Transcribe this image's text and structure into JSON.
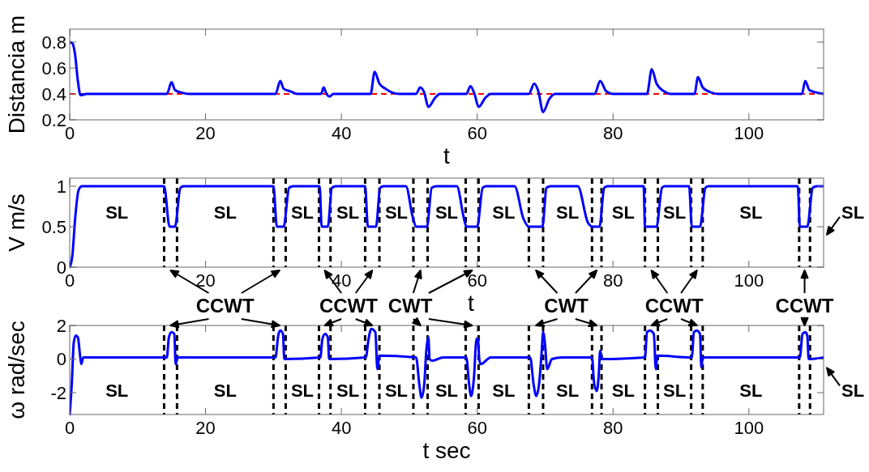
{
  "chart_data": [
    {
      "type": "line",
      "xlabel": "t",
      "ylabel": "Distancia m",
      "color": "#0000ff",
      "xlim": [
        0,
        111
      ],
      "xticks": [
        0,
        20,
        40,
        60,
        80,
        100
      ],
      "ylim": [
        0.2,
        0.9
      ],
      "yticks": [
        0.2,
        0.4,
        0.6,
        0.8
      ],
      "x": [
        0,
        0.4,
        0.8,
        1.2,
        1.6,
        2.5,
        14.3,
        15.0,
        15.5,
        16.5,
        17.5,
        30.3,
        31.0,
        31.5,
        32.5,
        33.5,
        37.0,
        37.4,
        37.8,
        38.3,
        38.8,
        44.3,
        44.9,
        45.6,
        46.5,
        47.5,
        48.5,
        51.0,
        51.6,
        52.2,
        52.8,
        53.8,
        54.5,
        58.4,
        59.0,
        59.6,
        60.2,
        61.2,
        62.0,
        67.6,
        68.4,
        69.0,
        69.7,
        70.6,
        71.5,
        77.3,
        78.1,
        79.0,
        80,
        85.0,
        85.7,
        86.4,
        87.5,
        88.5,
        92.0,
        92.5,
        93.2,
        94.5,
        95.5,
        107.8,
        108.3,
        108.9,
        110,
        111
      ],
      "values": [
        0.8,
        0.79,
        0.7,
        0.5,
        0.39,
        0.4,
        0.4,
        0.49,
        0.43,
        0.41,
        0.4,
        0.4,
        0.5,
        0.44,
        0.42,
        0.4,
        0.4,
        0.45,
        0.4,
        0.38,
        0.4,
        0.4,
        0.57,
        0.48,
        0.44,
        0.41,
        0.4,
        0.4,
        0.45,
        0.41,
        0.3,
        0.37,
        0.4,
        0.4,
        0.46,
        0.4,
        0.3,
        0.37,
        0.4,
        0.4,
        0.48,
        0.42,
        0.26,
        0.36,
        0.4,
        0.4,
        0.5,
        0.42,
        0.4,
        0.4,
        0.59,
        0.48,
        0.42,
        0.4,
        0.4,
        0.53,
        0.45,
        0.41,
        0.4,
        0.4,
        0.5,
        0.43,
        0.41,
        0.4
      ],
      "ref_lines": [
        {
          "axis": "y",
          "value": 0.4,
          "color": "#ff0000",
          "line_style": "dashed"
        }
      ]
    },
    {
      "type": "line",
      "xlabel": "t",
      "ylabel": "V m/s",
      "color": "#0000ff",
      "xlim": [
        0,
        111
      ],
      "xticks": [
        0,
        20,
        40,
        60,
        80,
        100
      ],
      "ylim": [
        0,
        1.1
      ],
      "yticks": [
        0,
        0.5,
        1
      ],
      "x": [
        0,
        0.4,
        0.8,
        1.3,
        1.8,
        13.9,
        14.7,
        15.5,
        16.3,
        16.8,
        30.0,
        30.5,
        31.5,
        32.3,
        32.9,
        36.8,
        37.1,
        38.0,
        38.6,
        39.2,
        43.5,
        43.9,
        45.1,
        45.7,
        46.2,
        49.5,
        50.5,
        51.0,
        52.6,
        53.3,
        54,
        57,
        58.0,
        58.4,
        60.0,
        60.8,
        61.3,
        65.5,
        66.8,
        67.6,
        69.6,
        70.2,
        70.8,
        74.8,
        76.3,
        77.0,
        78.0,
        78.7,
        79.2,
        84.5,
        84.7,
        86.4,
        87.2,
        87.6,
        91.2,
        91.6,
        92.8,
        93.6,
        94,
        107.2,
        107.5,
        108.6,
        109.4,
        110,
        111
      ],
      "values": [
        0,
        0.15,
        0.6,
        0.95,
        1,
        1,
        0.5,
        0.5,
        0.98,
        1,
        1,
        0.5,
        0.5,
        0.98,
        1,
        1,
        0.5,
        0.5,
        0.98,
        1,
        1,
        0.5,
        0.5,
        0.98,
        1,
        1,
        0.62,
        0.5,
        0.5,
        0.98,
        1,
        1,
        0.62,
        0.5,
        0.5,
        0.98,
        1,
        1,
        0.6,
        0.5,
        0.5,
        0.98,
        1,
        1,
        0.55,
        0.5,
        0.5,
        0.98,
        1,
        1,
        0.5,
        0.5,
        0.98,
        1,
        1,
        0.5,
        0.5,
        0.98,
        1,
        1,
        0.5,
        0.5,
        0.98,
        1,
        1
      ],
      "ref_lines": [
        {
          "axis": "x",
          "value": 13.9,
          "color": "#000000",
          "line_style": "dashed"
        },
        {
          "axis": "x",
          "value": 15.8,
          "color": "#000000",
          "line_style": "dashed"
        },
        {
          "axis": "x",
          "value": 30.0,
          "color": "#000000",
          "line_style": "dashed"
        },
        {
          "axis": "x",
          "value": 31.8,
          "color": "#000000",
          "line_style": "dashed"
        },
        {
          "axis": "x",
          "value": 36.7,
          "color": "#000000",
          "line_style": "dashed"
        },
        {
          "axis": "x",
          "value": 38.4,
          "color": "#000000",
          "line_style": "dashed"
        },
        {
          "axis": "x",
          "value": 43.5,
          "color": "#000000",
          "line_style": "dashed"
        },
        {
          "axis": "x",
          "value": 45.6,
          "color": "#000000",
          "line_style": "dashed"
        },
        {
          "axis": "x",
          "value": 50.6,
          "color": "#000000",
          "line_style": "dashed"
        },
        {
          "axis": "x",
          "value": 52.7,
          "color": "#000000",
          "line_style": "dashed"
        },
        {
          "axis": "x",
          "value": 58.3,
          "color": "#000000",
          "line_style": "dashed"
        },
        {
          "axis": "x",
          "value": 60.2,
          "color": "#000000",
          "line_style": "dashed"
        },
        {
          "axis": "x",
          "value": 67.6,
          "color": "#000000",
          "line_style": "dashed"
        },
        {
          "axis": "x",
          "value": 69.7,
          "color": "#000000",
          "line_style": "dashed"
        },
        {
          "axis": "x",
          "value": 76.9,
          "color": "#000000",
          "line_style": "dashed"
        },
        {
          "axis": "x",
          "value": 78.3,
          "color": "#000000",
          "line_style": "dashed"
        },
        {
          "axis": "x",
          "value": 84.7,
          "color": "#000000",
          "line_style": "dashed"
        },
        {
          "axis": "x",
          "value": 86.6,
          "color": "#000000",
          "line_style": "dashed"
        },
        {
          "axis": "x",
          "value": 91.5,
          "color": "#000000",
          "line_style": "dashed"
        },
        {
          "axis": "x",
          "value": 93.2,
          "color": "#000000",
          "line_style": "dashed"
        },
        {
          "axis": "x",
          "value": 107.4,
          "color": "#000000",
          "line_style": "dashed"
        },
        {
          "axis": "x",
          "value": 109.0,
          "color": "#000000",
          "line_style": "dashed"
        }
      ],
      "annotations": [
        "SL",
        "SL",
        "SL",
        "SL",
        "SL",
        "SL",
        "SL",
        "SL",
        "SL",
        "SL",
        "SL",
        "SL",
        "CCWT",
        "CCWT",
        "CWT",
        "CWT",
        "CCWT",
        "CCWT"
      ]
    },
    {
      "type": "line",
      "xlabel": "t sec",
      "ylabel": "ω rad/sec",
      "color": "#0000ff",
      "xlim": [
        0,
        111
      ],
      "xticks": [
        0,
        20,
        40,
        60,
        80,
        100
      ],
      "ylim": [
        -3.3,
        2
      ],
      "yticks": [
        -2,
        0,
        2
      ],
      "x": [
        0,
        0.3,
        0.6,
        0.9,
        1.2,
        1.5,
        1.7,
        2,
        14.3,
        14.6,
        15.0,
        15.4,
        15.6,
        15.9,
        30.3,
        30.7,
        31.0,
        31.4,
        31.6,
        36.9,
        37.2,
        37.6,
        38.0,
        38.2,
        43.6,
        44.0,
        44.4,
        45.0,
        45.3,
        45.6,
        51.0,
        51.5,
        51.8,
        52.2,
        52.5,
        52.8,
        53.0,
        53.3,
        55,
        58.4,
        58.8,
        59.1,
        59.5,
        59.9,
        60.1,
        60.3,
        60.5,
        62,
        67.8,
        68.3,
        68.7,
        69.1,
        69.5,
        69.7,
        70.0,
        70.3,
        71,
        72.5,
        76.9,
        77.2,
        77.6,
        77.9,
        78.1,
        78.4,
        84.7,
        85.0,
        85.4,
        86.0,
        86.3,
        86.5,
        91.6,
        91.9,
        92.3,
        92.8,
        93.0,
        93.2,
        107.5,
        107.9,
        108.3,
        108.6,
        108.8,
        111
      ],
      "values": [
        -3.3,
        -1.5,
        1.0,
        1.4,
        1.3,
        0.3,
        -0.3,
        0.1,
        0.1,
        1.3,
        1.6,
        1.5,
        -0.3,
        0.1,
        0.1,
        1.4,
        1.7,
        1.5,
        0,
        0.1,
        1.2,
        1.5,
        1.3,
        0,
        0.1,
        1.2,
        1.8,
        1.6,
        -0.6,
        0.2,
        0.1,
        -1.6,
        -2.3,
        -1.5,
        0.5,
        1.3,
        0,
        -0.1,
        0.1,
        0.1,
        -1.5,
        -2.2,
        -1.2,
        1.2,
        1.2,
        0,
        -0.3,
        0.1,
        0.1,
        -1.5,
        -2.2,
        -1.5,
        0.5,
        1.6,
        0.8,
        -0.6,
        0,
        0.1,
        0.1,
        -1.4,
        -1.9,
        -0.9,
        0.5,
        0,
        0.1,
        1.6,
        1.7,
        1.5,
        -0.6,
        0.2,
        0.1,
        1.6,
        1.7,
        1.5,
        -0.5,
        0.1,
        0.1,
        1.5,
        1.6,
        1.4,
        0,
        0.1
      ],
      "ref_lines": [
        {
          "axis": "x",
          "value": 13.9,
          "color": "#000000",
          "line_style": "dashed"
        },
        {
          "axis": "x",
          "value": 15.8,
          "color": "#000000",
          "line_style": "dashed"
        },
        {
          "axis": "x",
          "value": 30.0,
          "color": "#000000",
          "line_style": "dashed"
        },
        {
          "axis": "x",
          "value": 31.8,
          "color": "#000000",
          "line_style": "dashed"
        },
        {
          "axis": "x",
          "value": 36.7,
          "color": "#000000",
          "line_style": "dashed"
        },
        {
          "axis": "x",
          "value": 38.4,
          "color": "#000000",
          "line_style": "dashed"
        },
        {
          "axis": "x",
          "value": 43.5,
          "color": "#000000",
          "line_style": "dashed"
        },
        {
          "axis": "x",
          "value": 45.6,
          "color": "#000000",
          "line_style": "dashed"
        },
        {
          "axis": "x",
          "value": 50.6,
          "color": "#000000",
          "line_style": "dashed"
        },
        {
          "axis": "x",
          "value": 52.7,
          "color": "#000000",
          "line_style": "dashed"
        },
        {
          "axis": "x",
          "value": 58.3,
          "color": "#000000",
          "line_style": "dashed"
        },
        {
          "axis": "x",
          "value": 60.2,
          "color": "#000000",
          "line_style": "dashed"
        },
        {
          "axis": "x",
          "value": 67.6,
          "color": "#000000",
          "line_style": "dashed"
        },
        {
          "axis": "x",
          "value": 69.7,
          "color": "#000000",
          "line_style": "dashed"
        },
        {
          "axis": "x",
          "value": 76.9,
          "color": "#000000",
          "line_style": "dashed"
        },
        {
          "axis": "x",
          "value": 78.3,
          "color": "#000000",
          "line_style": "dashed"
        },
        {
          "axis": "x",
          "value": 84.7,
          "color": "#000000",
          "line_style": "dashed"
        },
        {
          "axis": "x",
          "value": 86.6,
          "color": "#000000",
          "line_style": "dashed"
        },
        {
          "axis": "x",
          "value": 91.5,
          "color": "#000000",
          "line_style": "dashed"
        },
        {
          "axis": "x",
          "value": 93.2,
          "color": "#000000",
          "line_style": "dashed"
        },
        {
          "axis": "x",
          "value": 107.4,
          "color": "#000000",
          "line_style": "dashed"
        },
        {
          "axis": "x",
          "value": 109.0,
          "color": "#000000",
          "line_style": "dashed"
        }
      ],
      "annotations": [
        "SL",
        "SL",
        "SL",
        "SL",
        "SL",
        "SL",
        "SL",
        "SL",
        "SL",
        "SL",
        "SL",
        "SL"
      ]
    }
  ]
}
